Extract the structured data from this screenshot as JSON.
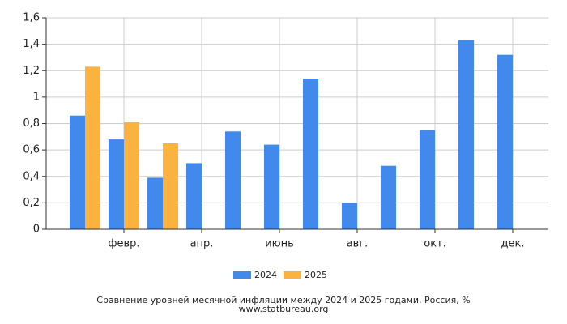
{
  "chart_data": {
    "type": "bar",
    "title": "Сравнение уровней месячной инфляции между 2024 и 2025 годами, Россия, %",
    "subtitle": "www.statbureau.org",
    "categories": [
      null,
      "февр.",
      null,
      "апр.",
      null,
      "июнь",
      null,
      "авг.",
      null,
      "окт.",
      null,
      "дек."
    ],
    "series": [
      {
        "name": "2024",
        "color": "#4189ea",
        "values": [
          0.86,
          0.68,
          0.39,
          0.5,
          0.74,
          0.64,
          1.14,
          0.2,
          0.48,
          0.75,
          1.43,
          1.32
        ]
      },
      {
        "name": "2025",
        "color": "#fbb33f",
        "values": [
          1.23,
          0.81,
          0.65,
          null,
          null,
          null,
          null,
          null,
          null,
          null,
          null,
          null
        ]
      }
    ],
    "ylim": [
      0,
      1.6
    ],
    "yticks": [
      0,
      {
        "value": 0.2,
        "label": "0,2"
      },
      {
        "value": 0.4,
        "label": "0,4"
      },
      {
        "value": 0.6,
        "label": "0,6"
      },
      {
        "value": 0.8,
        "label": "0,8"
      },
      1,
      {
        "value": 1.2,
        "label": "1,2"
      },
      {
        "value": 1.4,
        "label": "1,4"
      },
      {
        "value": 1.6,
        "label": "1,6"
      }
    ],
    "grid": true,
    "legend": "bottom"
  }
}
